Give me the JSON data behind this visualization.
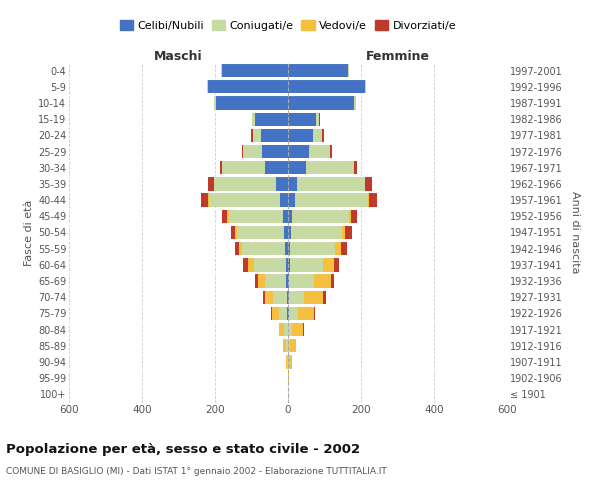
{
  "age_groups": [
    "100+",
    "95-99",
    "90-94",
    "85-89",
    "80-84",
    "75-79",
    "70-74",
    "65-69",
    "60-64",
    "55-59",
    "50-54",
    "45-49",
    "40-44",
    "35-39",
    "30-34",
    "25-29",
    "20-24",
    "15-19",
    "10-14",
    "5-9",
    "0-4"
  ],
  "birth_years": [
    "≤ 1901",
    "1902-1906",
    "1907-1911",
    "1912-1916",
    "1917-1921",
    "1922-1926",
    "1927-1931",
    "1932-1936",
    "1937-1941",
    "1942-1946",
    "1947-1951",
    "1952-1956",
    "1957-1961",
    "1962-1966",
    "1967-1971",
    "1972-1976",
    "1977-1981",
    "1982-1986",
    "1987-1991",
    "1992-1996",
    "1997-2001"
  ],
  "maschi_celibi": [
    0,
    0,
    0,
    0,
    0,
    2,
    3,
    5,
    6,
    7,
    10,
    15,
    22,
    32,
    62,
    72,
    75,
    90,
    198,
    218,
    182
  ],
  "maschi_coniugati": [
    0,
    0,
    2,
    5,
    12,
    22,
    38,
    58,
    88,
    118,
    130,
    148,
    195,
    170,
    120,
    50,
    22,
    8,
    4,
    3,
    2
  ],
  "maschi_vedovi": [
    0,
    1,
    4,
    8,
    14,
    20,
    22,
    20,
    16,
    10,
    5,
    3,
    2,
    1,
    0,
    0,
    0,
    0,
    0,
    0,
    0
  ],
  "maschi_divorziati": [
    0,
    0,
    0,
    0,
    0,
    2,
    5,
    8,
    12,
    10,
    12,
    15,
    18,
    15,
    5,
    5,
    5,
    2,
    0,
    0,
    0
  ],
  "femmine_nubili": [
    0,
    0,
    0,
    0,
    0,
    2,
    3,
    4,
    5,
    6,
    8,
    12,
    20,
    25,
    50,
    58,
    68,
    78,
    182,
    210,
    165
  ],
  "femmine_coniugate": [
    0,
    0,
    2,
    5,
    12,
    26,
    42,
    68,
    90,
    122,
    140,
    155,
    200,
    185,
    130,
    58,
    26,
    8,
    4,
    3,
    2
  ],
  "femmine_vedove": [
    0,
    2,
    8,
    18,
    30,
    42,
    50,
    45,
    30,
    18,
    8,
    5,
    3,
    1,
    0,
    0,
    0,
    0,
    0,
    0,
    0
  ],
  "femmine_divorziate": [
    0,
    0,
    0,
    0,
    2,
    5,
    8,
    10,
    15,
    15,
    18,
    18,
    20,
    18,
    8,
    5,
    5,
    2,
    0,
    0,
    0
  ],
  "color_celibi": "#4472c4",
  "color_coniugati": "#c8daa4",
  "color_vedovi": "#f5c040",
  "color_divorziati": "#c0392b",
  "xlim": 600,
  "title": "Popolazione per età, sesso e stato civile - 2002",
  "subtitle": "COMUNE DI BASIGLIO (MI) - Dati ISTAT 1° gennaio 2002 - Elaborazione TUTTITALIA.IT",
  "legend_labels": [
    "Celibi/Nubili",
    "Coniugati/e",
    "Vedovi/e",
    "Divorziati/e"
  ],
  "ylabel_left": "Fasce di età",
  "ylabel_right": "Anni di nascita",
  "xlabel_maschi": "Maschi",
  "xlabel_femmine": "Femmine",
  "bg_color": "#ffffff",
  "grid_color": "#cccccc"
}
